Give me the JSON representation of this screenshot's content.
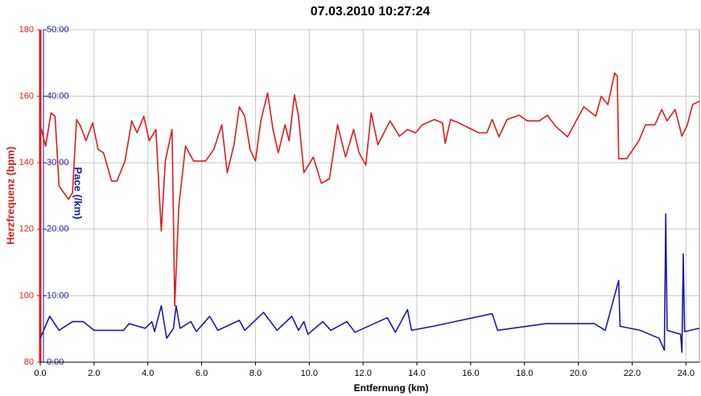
{
  "chart_data": {
    "type": "line",
    "title": "07.03.2010 10:27:24",
    "xlabel": "Entfernung (km)",
    "ylabel": "Herzfrequenz (bpm)",
    "y2label": "Pace (/km)",
    "xlim": [
      0,
      24.5
    ],
    "xticks": [
      {
        "value": 0,
        "label": "0.0"
      },
      {
        "value": 2,
        "label": "2.0"
      },
      {
        "value": 4,
        "label": "4.0"
      },
      {
        "value": 6,
        "label": "6.0"
      },
      {
        "value": 8,
        "label": "8.0"
      },
      {
        "value": 10,
        "label": "10.0"
      },
      {
        "value": 12,
        "label": "12.0"
      },
      {
        "value": 14,
        "label": "14.0"
      },
      {
        "value": 16,
        "label": "16.0"
      },
      {
        "value": 18,
        "label": "18.0"
      },
      {
        "value": 20,
        "label": "20.0"
      },
      {
        "value": 22,
        "label": "22.0"
      },
      {
        "value": 24,
        "label": "24.0"
      }
    ],
    "ylim": [
      80,
      180
    ],
    "yticks": [
      80,
      100,
      120,
      140,
      160,
      180
    ],
    "y2lim": [
      0,
      50
    ],
    "y2ticks": [
      {
        "value": 0,
        "label": "0:00"
      },
      {
        "value": 10,
        "label": "10:00"
      },
      {
        "value": 20,
        "label": "20:00"
      },
      {
        "value": 30,
        "label": "30:00"
      },
      {
        "value": 40,
        "label": "40:00"
      },
      {
        "value": 50,
        "label": "50:00"
      }
    ],
    "grid": true,
    "series": [
      {
        "name": "Herzfrequenz",
        "color": "#dd1c1c",
        "axis": "y",
        "x": [
          0,
          0.2,
          0.4,
          0.55,
          0.7,
          1.05,
          1.2,
          1.35,
          1.5,
          1.7,
          1.95,
          2.15,
          2.35,
          2.65,
          2.85,
          3.15,
          3.4,
          3.6,
          3.85,
          4.05,
          4.3,
          4.5,
          4.65,
          4.9,
          5.0,
          5.15,
          5.4,
          5.7,
          6.15,
          6.45,
          6.75,
          6.95,
          7.2,
          7.4,
          7.6,
          7.8,
          8.0,
          8.2,
          8.45,
          8.65,
          8.85,
          9.1,
          9.25,
          9.45,
          9.6,
          9.8,
          10.15,
          10.45,
          10.75,
          11.05,
          11.35,
          11.65,
          11.85,
          12.1,
          12.3,
          12.55,
          13.0,
          13.35,
          13.65,
          13.95,
          14.2,
          14.65,
          14.95,
          15.05,
          15.25,
          15.55,
          16.3,
          16.6,
          16.8,
          17.05,
          17.35,
          17.8,
          18.1,
          18.55,
          18.85,
          19.15,
          19.6,
          20.2,
          20.65,
          20.85,
          21.1,
          21.35,
          21.45,
          21.5,
          21.8,
          22.25,
          22.5,
          22.85,
          23.1,
          23.3,
          23.6,
          23.85,
          24.05,
          24.25,
          24.5
        ],
        "values": [
          151.4,
          145,
          155,
          154,
          133,
          129,
          131,
          153,
          151,
          146.6,
          152,
          144,
          143,
          134.5,
          134.5,
          140.5,
          152.6,
          149,
          154,
          146.6,
          150,
          119.5,
          140.5,
          150,
          97,
          127,
          145,
          140.5,
          140.5,
          144,
          151.4,
          137,
          145.4,
          156.8,
          154,
          144,
          140.5,
          152.6,
          161,
          150,
          143,
          151.4,
          146.6,
          160.4,
          154,
          137,
          141.7,
          133.8,
          135.2,
          151.4,
          141.7,
          150,
          143,
          139.3,
          155,
          145.4,
          152.6,
          148,
          150,
          149,
          151.4,
          153,
          152,
          145.8,
          153,
          152,
          149,
          149,
          153,
          147.8,
          153,
          154.3,
          152.6,
          152.6,
          154.3,
          151,
          147.8,
          156.8,
          154,
          160,
          157.5,
          167,
          166,
          141.2,
          141.2,
          146.6,
          151.4,
          151.4,
          156,
          152.6,
          156,
          148,
          151.4,
          157.5,
          158.5
        ]
      },
      {
        "name": "Pace",
        "color": "#1a1aaa",
        "axis": "y2",
        "x": [
          0,
          0.35,
          0.7,
          1.2,
          1.6,
          2.0,
          3.1,
          3.3,
          3.9,
          4.15,
          4.25,
          4.5,
          4.7,
          4.95,
          5.05,
          5.2,
          5.6,
          5.8,
          6.3,
          6.6,
          7.4,
          7.6,
          8.3,
          8.8,
          9.35,
          9.6,
          9.8,
          9.95,
          10.5,
          10.8,
          11.4,
          11.7,
          12.9,
          13.2,
          13.65,
          13.8,
          14.6,
          16.8,
          17.0,
          18.8,
          19.8,
          20.6,
          21.0,
          21.5,
          21.55,
          22.3,
          23.0,
          23.2,
          23.25,
          23.3,
          23.8,
          23.85,
          23.9,
          23.95,
          24.5
        ],
        "values": [
          3.6,
          6.9,
          4.8,
          6.1,
          6.1,
          4.8,
          4.8,
          5.8,
          5.1,
          6.1,
          4.6,
          8.5,
          3.6,
          5.1,
          8.5,
          5.1,
          6.1,
          4.6,
          6.9,
          4.8,
          6.3,
          4.8,
          7.5,
          4.8,
          6.9,
          4.8,
          6.1,
          4.2,
          6.1,
          4.8,
          6.1,
          4.5,
          6.7,
          4.5,
          7.9,
          4.8,
          5.4,
          7.3,
          4.8,
          5.8,
          5.8,
          5.8,
          4.8,
          12.3,
          5.4,
          4.8,
          3.6,
          1.8,
          22.3,
          4.8,
          4.2,
          1.5,
          16.3,
          4.6,
          5.1
        ]
      }
    ]
  }
}
